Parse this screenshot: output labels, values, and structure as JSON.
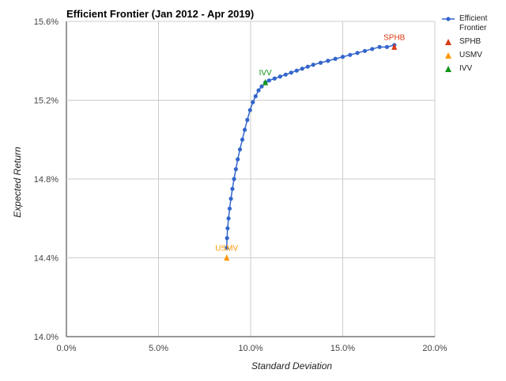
{
  "chart_data": {
    "type": "scatter",
    "title": "Efficient Frontier (Jan 2012 - Apr 2019)",
    "xlabel": "Standard Deviation",
    "ylabel": "Expected Return",
    "xlim": [
      0.0,
      20.0
    ],
    "ylim": [
      14.0,
      15.6
    ],
    "x_ticks": [
      "0.0%",
      "5.0%",
      "10.0%",
      "15.0%",
      "20.0%"
    ],
    "y_ticks": [
      "14.0%",
      "14.4%",
      "14.8%",
      "15.2%",
      "15.6%"
    ],
    "grid": true,
    "legend_position": "right",
    "series": [
      {
        "name": "Efficient Frontier",
        "color": "#3366cc",
        "marker": "circle",
        "line": true,
        "x": [
          8.7,
          8.72,
          8.75,
          8.8,
          8.86,
          8.93,
          9.01,
          9.1,
          9.2,
          9.3,
          9.42,
          9.55,
          9.68,
          9.82,
          9.97,
          10.12,
          10.27,
          10.43,
          10.6,
          10.8,
          11.0,
          11.3,
          11.6,
          11.9,
          12.2,
          12.5,
          12.8,
          13.1,
          13.4,
          13.8,
          14.2,
          14.6,
          15.0,
          15.4,
          15.8,
          16.2,
          16.6,
          17.0,
          17.4,
          17.8
        ],
        "y": [
          14.45,
          14.5,
          14.55,
          14.6,
          14.65,
          14.7,
          14.75,
          14.8,
          14.85,
          14.9,
          14.95,
          15.0,
          15.05,
          15.1,
          15.15,
          15.19,
          15.22,
          15.25,
          15.27,
          15.29,
          15.3,
          15.31,
          15.32,
          15.33,
          15.34,
          15.35,
          15.36,
          15.37,
          15.38,
          15.39,
          15.4,
          15.41,
          15.42,
          15.43,
          15.44,
          15.45,
          15.46,
          15.47,
          15.47,
          15.48
        ]
      },
      {
        "name": "SPHB",
        "color": "#dc3912",
        "marker": "triangle",
        "x": [
          17.8
        ],
        "y": [
          15.47
        ],
        "label": "SPHB"
      },
      {
        "name": "USMV",
        "color": "#ff9900",
        "marker": "triangle",
        "x": [
          8.7
        ],
        "y": [
          14.4
        ],
        "label": "USMV"
      },
      {
        "name": "IVV",
        "color": "#109618",
        "marker": "triangle",
        "x": [
          10.8
        ],
        "y": [
          15.29
        ],
        "label": "IVV"
      }
    ]
  }
}
